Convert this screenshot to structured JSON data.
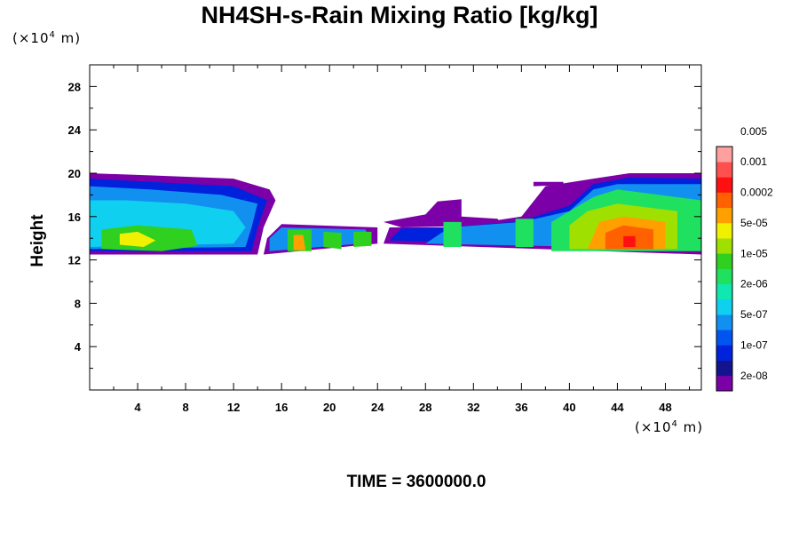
{
  "chart_data": {
    "type": "heatmap",
    "title": "NH4SH-s-Rain Mixing Ratio [kg/kg]",
    "ylabel": "Height",
    "x_unit": "(×10⁴ m)",
    "y_unit": "(×10⁴ m)",
    "footer": "TIME = 3600000.0",
    "xlim": [
      0,
      51
    ],
    "ylim": [
      0,
      30
    ],
    "xticks": [
      4,
      8,
      12,
      16,
      20,
      24,
      28,
      32,
      36,
      40,
      44,
      48
    ],
    "yticks": [
      4,
      8,
      12,
      16,
      20,
      24,
      28
    ],
    "colorbar": {
      "colors": [
        "#7b00a8",
        "#13138f",
        "#0022dd",
        "#0055f0",
        "#1190f0",
        "#10d0f0",
        "#10e8b0",
        "#20e060",
        "#30d020",
        "#a0e000",
        "#f0f000",
        "#ffa000",
        "#ff6000",
        "#ff1010",
        "#ff5050",
        "#ffa0a0"
      ],
      "labels": [
        "2e-08",
        "1e-07",
        "5e-07",
        "2e-06",
        "1e-05",
        "5e-05",
        "0.0002",
        "0.001",
        "0.005"
      ]
    },
    "regions": [
      {
        "level": 0,
        "points": [
          [
            0,
            12.5
          ],
          [
            14,
            12.5
          ],
          [
            14.5,
            15
          ],
          [
            15.5,
            17.5
          ],
          [
            15,
            18.5
          ],
          [
            12,
            19.5
          ],
          [
            5,
            19.8
          ],
          [
            0,
            20
          ]
        ]
      },
      {
        "level": 2,
        "points": [
          [
            0,
            12.8
          ],
          [
            13.5,
            12.8
          ],
          [
            14,
            15
          ],
          [
            14.8,
            17.5
          ],
          [
            12,
            18.8
          ],
          [
            5,
            19.2
          ],
          [
            0,
            19.5
          ]
        ]
      },
      {
        "level": 4,
        "points": [
          [
            0,
            13
          ],
          [
            13,
            13.2
          ],
          [
            13.5,
            15
          ],
          [
            14,
            17.2
          ],
          [
            11,
            18
          ],
          [
            5,
            18.5
          ],
          [
            0,
            18.8
          ]
        ]
      },
      {
        "level": 5,
        "points": [
          [
            0,
            13.2
          ],
          [
            12,
            13.5
          ],
          [
            13,
            15
          ],
          [
            12,
            16.5
          ],
          [
            8,
            17.2
          ],
          [
            3,
            17.5
          ],
          [
            0,
            17.5
          ]
        ]
      },
      {
        "level": 8,
        "points": [
          [
            1,
            13
          ],
          [
            6,
            12.8
          ],
          [
            9,
            13.3
          ],
          [
            8.5,
            14.8
          ],
          [
            4,
            15.2
          ],
          [
            1,
            14.8
          ]
        ]
      },
      {
        "level": 10,
        "points": [
          [
            2.5,
            13.4
          ],
          [
            4.5,
            13.2
          ],
          [
            5.5,
            13.8
          ],
          [
            4,
            14.6
          ],
          [
            2.5,
            14.4
          ]
        ]
      },
      {
        "level": 0,
        "points": [
          [
            14.5,
            12.5
          ],
          [
            24,
            13.5
          ],
          [
            24,
            15
          ],
          [
            16,
            15.3
          ],
          [
            14.8,
            14
          ]
        ]
      },
      {
        "level": 4,
        "points": [
          [
            15,
            12.8
          ],
          [
            23.5,
            13.6
          ],
          [
            23,
            14.8
          ],
          [
            16,
            15
          ],
          [
            15,
            14
          ]
        ]
      },
      {
        "level": 8,
        "points": [
          [
            16.5,
            12.8
          ],
          [
            18.5,
            12.8
          ],
          [
            18.5,
            14.8
          ],
          [
            16.5,
            14.8
          ]
        ]
      },
      {
        "level": 11,
        "points": [
          [
            17,
            12.9
          ],
          [
            18,
            12.9
          ],
          [
            17.8,
            14.3
          ],
          [
            17,
            14.3
          ]
        ]
      },
      {
        "level": 8,
        "points": [
          [
            19.5,
            13.2
          ],
          [
            21,
            13
          ],
          [
            21,
            14.5
          ],
          [
            19.5,
            14.6
          ]
        ]
      },
      {
        "level": 8,
        "points": [
          [
            22,
            13.2
          ],
          [
            23.5,
            13.3
          ],
          [
            23.5,
            14.6
          ],
          [
            22,
            14.6
          ]
        ]
      },
      {
        "level": 0,
        "points": [
          [
            24.5,
            15.5
          ],
          [
            28,
            16.2
          ],
          [
            29,
            17.4
          ],
          [
            31,
            17.6
          ],
          [
            31,
            16
          ],
          [
            34,
            15.8
          ],
          [
            34.5,
            15.2
          ],
          [
            26,
            15
          ]
        ]
      },
      {
        "level": 0,
        "points": [
          [
            24.5,
            13.5
          ],
          [
            51,
            12.5
          ],
          [
            51,
            20
          ],
          [
            45,
            20
          ],
          [
            42,
            19.5
          ],
          [
            38,
            18.8
          ],
          [
            36,
            16
          ],
          [
            30,
            15
          ],
          [
            25,
            15
          ]
        ]
      },
      {
        "level": 2,
        "points": [
          [
            25,
            13.8
          ],
          [
            51,
            12.8
          ],
          [
            51,
            19.5
          ],
          [
            45,
            19.6
          ],
          [
            42,
            19
          ],
          [
            40,
            17
          ],
          [
            36,
            15.6
          ],
          [
            30,
            15
          ],
          [
            26,
            14.9
          ]
        ]
      },
      {
        "level": 4,
        "points": [
          [
            28,
            13.5
          ],
          [
            51,
            13
          ],
          [
            51,
            19
          ],
          [
            44,
            19
          ],
          [
            42,
            18.5
          ],
          [
            40,
            16.5
          ],
          [
            36,
            15.5
          ],
          [
            30,
            15
          ]
        ]
      },
      {
        "level": 7,
        "points": [
          [
            29.5,
            13.2
          ],
          [
            31,
            13.2
          ],
          [
            31,
            15.5
          ],
          [
            29.5,
            15.5
          ]
        ]
      },
      {
        "level": 7,
        "points": [
          [
            35.5,
            13.2
          ],
          [
            37,
            13.2
          ],
          [
            37,
            15.8
          ],
          [
            35.5,
            15.8
          ]
        ]
      },
      {
        "level": 7,
        "points": [
          [
            38.5,
            12.8
          ],
          [
            51,
            12.8
          ],
          [
            51,
            17.5
          ],
          [
            44,
            18.5
          ],
          [
            42,
            17.8
          ],
          [
            40,
            16.5
          ],
          [
            38.5,
            15.5
          ]
        ]
      },
      {
        "level": 9,
        "points": [
          [
            40,
            13
          ],
          [
            49,
            13
          ],
          [
            49,
            16.5
          ],
          [
            44,
            17.2
          ],
          [
            41.5,
            16.5
          ],
          [
            40,
            15.2
          ]
        ]
      },
      {
        "level": 11,
        "points": [
          [
            41.5,
            13
          ],
          [
            48,
            13
          ],
          [
            48,
            15.5
          ],
          [
            44.5,
            16
          ],
          [
            42.5,
            15.5
          ]
        ]
      },
      {
        "level": 12,
        "points": [
          [
            43,
            13
          ],
          [
            47,
            13
          ],
          [
            47,
            14.8
          ],
          [
            44.5,
            15.2
          ],
          [
            43,
            14.5
          ]
        ]
      },
      {
        "level": 13,
        "points": [
          [
            44.5,
            13.2
          ],
          [
            45.5,
            13.2
          ],
          [
            45.5,
            14.2
          ],
          [
            44.5,
            14.2
          ]
        ]
      },
      {
        "level": 0,
        "points": [
          [
            37,
            18.8
          ],
          [
            39.5,
            18.9
          ],
          [
            39.5,
            19.2
          ],
          [
            37,
            19.2
          ]
        ]
      }
    ]
  }
}
